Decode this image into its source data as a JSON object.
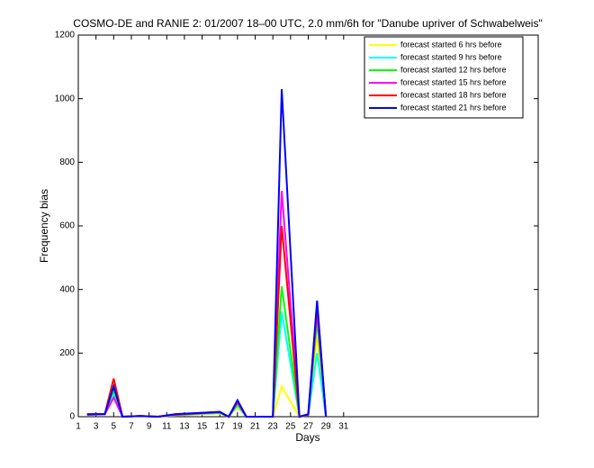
{
  "chart_data": {
    "type": "line",
    "title": "COSMO-DE and RANIE 2: 01/2007 18–00 UTC, 2.0 mm/6h for \"Danube upriver of Schwabelweis\"",
    "xlabel": "Days",
    "ylabel": "Frequency bias",
    "x": [
      2,
      4,
      5,
      6,
      8,
      10,
      11,
      12,
      17,
      18,
      19,
      20,
      22,
      23,
      24,
      26,
      27,
      28,
      29
    ],
    "series": [
      {
        "name": "forecast started 6 hrs before",
        "color": "#ffff00",
        "values": [
          5,
          8,
          70,
          0,
          2,
          0,
          2,
          4,
          10,
          0,
          30,
          0,
          0,
          0,
          95,
          0,
          5,
          250,
          0
        ]
      },
      {
        "name": "forecast started 9 hrs before",
        "color": "#00ffff",
        "values": [
          5,
          8,
          75,
          0,
          2,
          0,
          3,
          5,
          12,
          0,
          35,
          0,
          0,
          0,
          330,
          0,
          5,
          200,
          0
        ]
      },
      {
        "name": "forecast started 12 hrs before",
        "color": "#00ff00",
        "values": [
          6,
          8,
          85,
          0,
          2,
          0,
          3,
          6,
          12,
          0,
          40,
          0,
          0,
          0,
          410,
          0,
          6,
          300,
          0
        ]
      },
      {
        "name": "forecast started 15 hrs before",
        "color": "#ff00ff",
        "values": [
          6,
          8,
          60,
          0,
          2,
          0,
          3,
          6,
          14,
          0,
          45,
          0,
          0,
          0,
          710,
          0,
          6,
          330,
          0
        ]
      },
      {
        "name": "forecast started 18 hrs before",
        "color": "#ff0000",
        "values": [
          7,
          8,
          120,
          0,
          2,
          0,
          4,
          7,
          15,
          0,
          48,
          0,
          0,
          0,
          600,
          0,
          7,
          350,
          0
        ]
      },
      {
        "name": "forecast started 21 hrs before",
        "color": "#0000ff",
        "values": [
          8,
          8,
          95,
          0,
          2,
          0,
          4,
          8,
          15,
          0,
          52,
          0,
          0,
          0,
          1030,
          0,
          8,
          365,
          0
        ]
      }
    ],
    "xlim": [
      1,
      53
    ],
    "xticks": [
      1,
      3,
      5,
      7,
      9,
      11,
      13,
      15,
      17,
      19,
      21,
      23,
      25,
      27,
      29,
      31
    ],
    "ylim": [
      0,
      1200
    ],
    "yticks": [
      0,
      200,
      400,
      600,
      800,
      1000,
      1200
    ],
    "legend": "upper right",
    "grid": false
  }
}
